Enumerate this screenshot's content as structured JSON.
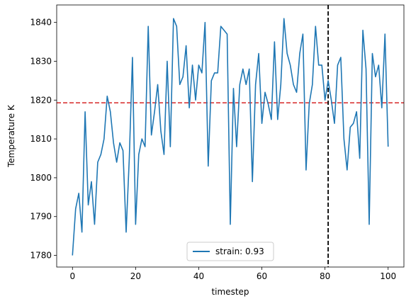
{
  "chart_data": {
    "type": "line",
    "xlabel": "timestep",
    "ylabel": "Temperature K",
    "xlim": [
      -5,
      105
    ],
    "ylim": [
      1777,
      1844.5
    ],
    "xticks": [
      0,
      20,
      40,
      60,
      80,
      100
    ],
    "yticks": [
      1780,
      1790,
      1800,
      1810,
      1820,
      1830,
      1840
    ],
    "grid": false,
    "legend": {
      "placement": "bottom-center",
      "entries": [
        "strain: 0.93"
      ]
    },
    "series": [
      {
        "name": "strain: 0.93",
        "color": "#1f77b4",
        "x": [
          0,
          1,
          2,
          3,
          4,
          5,
          6,
          7,
          8,
          9,
          10,
          11,
          12,
          13,
          14,
          15,
          16,
          17,
          18,
          19,
          20,
          21,
          22,
          23,
          24,
          25,
          26,
          27,
          28,
          29,
          30,
          31,
          32,
          33,
          34,
          35,
          36,
          37,
          38,
          39,
          40,
          41,
          42,
          43,
          44,
          45,
          46,
          47,
          48,
          49,
          50,
          51,
          52,
          53,
          54,
          55,
          56,
          57,
          58,
          59,
          60,
          61,
          62,
          63,
          64,
          65,
          66,
          67,
          68,
          69,
          70,
          71,
          72,
          73,
          74,
          75,
          76,
          77,
          78,
          79,
          80,
          81,
          82,
          83,
          84,
          85,
          86,
          87,
          88,
          89,
          90,
          91,
          92,
          93,
          94,
          95,
          96,
          97,
          98,
          99,
          100
        ],
        "y": [
          1780,
          1792,
          1796,
          1786,
          1817,
          1793,
          1799,
          1788,
          1804,
          1806,
          1810,
          1821,
          1817,
          1809,
          1804,
          1809,
          1807,
          1786,
          1805,
          1831,
          1788,
          1806,
          1810,
          1808,
          1839,
          1811,
          1817,
          1824,
          1812,
          1806,
          1830,
          1808,
          1841,
          1839,
          1824,
          1826,
          1834,
          1818,
          1829,
          1820,
          1829,
          1827,
          1840,
          1803,
          1825,
          1827,
          1827,
          1839,
          1838,
          1837,
          1788,
          1823,
          1808,
          1824,
          1828,
          1824,
          1828,
          1799,
          1824,
          1832,
          1814,
          1822,
          1819,
          1815,
          1835,
          1815,
          1824,
          1841,
          1832,
          1829,
          1824,
          1822,
          1832,
          1837,
          1802,
          1819,
          1824,
          1839,
          1829,
          1829,
          1820,
          1825,
          1820,
          1814,
          1829,
          1831,
          1810,
          1802,
          1813,
          1814,
          1817,
          1805,
          1838,
          1828,
          1788,
          1832,
          1826,
          1829,
          1818,
          1837,
          1808
        ]
      }
    ],
    "annotations": [
      {
        "kind": "hline",
        "y": 1819.3,
        "color": "#d62728",
        "style": "dashed"
      },
      {
        "kind": "vline",
        "x": 81,
        "color": "#000000",
        "style": "dashed"
      }
    ]
  }
}
